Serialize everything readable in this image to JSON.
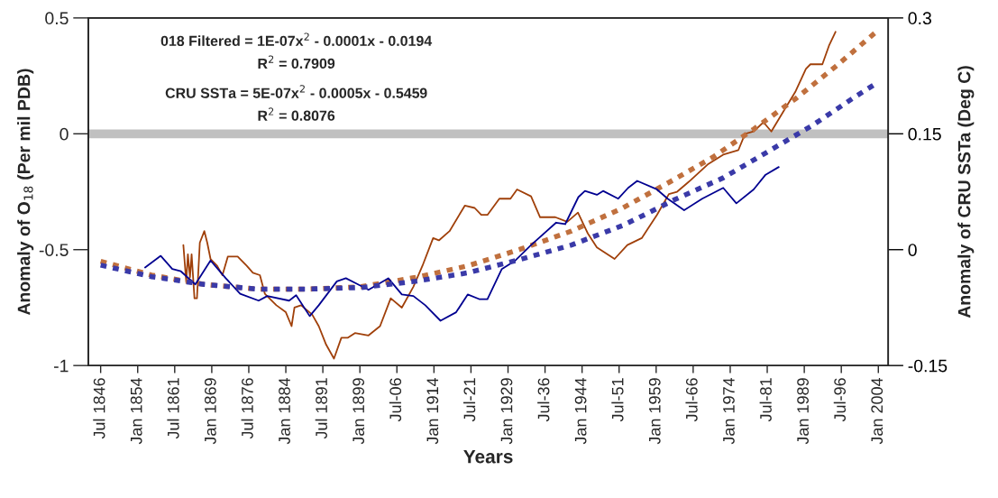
{
  "chart_data": {
    "type": "line",
    "xlabel": "Years",
    "ylabel": "Anomaly of O$_{18}$ (Per mil PDB)",
    "y2label": "Anomaly of CRU SSTa (Deg C)",
    "annotations": [
      "018 Filtered = 1E-07x$^{2}$ - 0.0001x - 0.0194",
      "R$^{2}$ = 0.7909",
      "CRU SSTa = 5E-07x$^{2}$ - 0.0005x - 0.5459",
      "R$^{2}$ = 0.8076"
    ],
    "xlim": [
      "1844-01",
      "2006-01"
    ],
    "xticks": [
      {
        "value": "1846-07",
        "label": "Jul 1846"
      },
      {
        "value": "1854-01",
        "label": "Jan 1854"
      },
      {
        "value": "1861-07",
        "label": "Jul 1861"
      },
      {
        "value": "1869-01",
        "label": "Jan 1869"
      },
      {
        "value": "1876-07",
        "label": "Jul 1876"
      },
      {
        "value": "1884-01",
        "label": "Jan 1884"
      },
      {
        "value": "1891-07",
        "label": "Jul 1891"
      },
      {
        "value": "1899-01",
        "label": "Jan 1899"
      },
      {
        "value": "1906-07",
        "label": "Jul-06"
      },
      {
        "value": "1914-01",
        "label": "Jan 1914"
      },
      {
        "value": "1921-07",
        "label": "Jul-21"
      },
      {
        "value": "1929-01",
        "label": "Jan 1929"
      },
      {
        "value": "1936-07",
        "label": "Jul-36"
      },
      {
        "value": "1944-01",
        "label": "Jan 1944"
      },
      {
        "value": "1951-07",
        "label": "Jul-51"
      },
      {
        "value": "1959-01",
        "label": "Jan 1959"
      },
      {
        "value": "1966-07",
        "label": "Jul-66"
      },
      {
        "value": "1974-01",
        "label": "Jan 1974"
      },
      {
        "value": "1981-07",
        "label": "Jul-81"
      },
      {
        "value": "1989-01",
        "label": "Jan 1989"
      },
      {
        "value": "1996-07",
        "label": "Jul-96"
      },
      {
        "value": "2004-01",
        "label": "Jan 2004"
      }
    ],
    "ylim": [
      -1,
      0.5
    ],
    "yticks": [
      -1,
      -0.5,
      0,
      0.5
    ],
    "y2lim": [
      -0.15,
      0.3
    ],
    "y2ticks": [
      -0.15,
      0,
      0.15,
      0.3
    ],
    "ref_lines": [
      {
        "axis": "y",
        "value": 0,
        "color": "#c0c0c0"
      }
    ],
    "grid": false,
    "legend": false,
    "marker": "none",
    "series": [
      {
        "axis": "y",
        "color": "#a0400a",
        "line_style": "solid",
        "x": [
          "1863-04",
          "1863-11",
          "1864-03",
          "1864-08",
          "1864-12",
          "1865-07",
          "1866-01",
          "1866-08",
          "1867-07",
          "1868-02",
          "1868-10",
          "1870-02",
          "1871-03",
          "1872-04",
          "1874-04",
          "1876-02",
          "1877-05",
          "1878-10",
          "1879-10",
          "1882-02",
          "1884-01",
          "1885-03",
          "1885-10",
          "1887-02",
          "1889-05",
          "1890-09",
          "1892-03",
          "1893-10",
          "1895-04",
          "1896-08",
          "1898-01",
          "1900-10",
          "1903-02",
          "1905-04",
          "1907-07",
          "1909-11",
          "1911-09",
          "1913-11",
          "1915-01",
          "1917-03",
          "1920-04",
          "1922-04",
          "1923-08",
          "1924-11",
          "1927-04",
          "1929-07",
          "1930-11",
          "1933-09",
          "1935-07",
          "1938-08",
          "1941-01",
          "1943-03",
          "1945-03",
          "1947-01",
          "1950-08",
          "1953-03",
          "1956-02",
          "1959-03",
          "1961-08",
          "1963-04",
          "1966-01",
          "1969-08",
          "1972-08",
          "1975-09",
          "1977-01",
          "1978-10",
          "1980-10",
          "1982-05",
          "1985-03",
          "1987-03",
          "1989-05",
          "1990-04",
          "1992-09",
          "1994-01",
          "1995-05"
        ],
        "values": [
          -0.48,
          -0.64,
          -0.52,
          -0.62,
          -0.52,
          -0.71,
          -0.71,
          -0.47,
          -0.42,
          -0.47,
          -0.54,
          -0.57,
          -0.61,
          -0.53,
          -0.53,
          -0.57,
          -0.6,
          -0.61,
          -0.69,
          -0.74,
          -0.77,
          -0.83,
          -0.75,
          -0.74,
          -0.78,
          -0.83,
          -0.91,
          -0.97,
          -0.88,
          -0.88,
          -0.86,
          -0.87,
          -0.83,
          -0.71,
          -0.75,
          -0.66,
          -0.57,
          -0.45,
          -0.46,
          -0.42,
          -0.31,
          -0.32,
          -0.35,
          -0.35,
          -0.28,
          -0.28,
          -0.24,
          -0.27,
          -0.36,
          -0.36,
          -0.38,
          -0.34,
          -0.43,
          -0.49,
          -0.54,
          -0.48,
          -0.45,
          -0.35,
          -0.26,
          -0.25,
          -0.2,
          -0.13,
          -0.09,
          -0.07,
          0.0,
          0.01,
          0.05,
          0.01,
          0.11,
          0.18,
          0.28,
          0.3,
          0.3,
          0.38,
          0.44
        ]
      },
      {
        "axis": "y2",
        "color": "#000090",
        "line_style": "solid",
        "x": [
          "1855-07",
          "1858-09",
          "1861-01",
          "1862-10",
          "1865-09",
          "1868-10",
          "1871-11",
          "1874-10",
          "1878-07",
          "1880-04",
          "1884-09",
          "1886-02",
          "1888-11",
          "1890-09",
          "1894-05",
          "1896-03",
          "1898-01",
          "1900-10",
          "1904-10",
          "1907-07",
          "1909-11",
          "1912-04",
          "1915-05",
          "1918-07",
          "1920-11",
          "1923-03",
          "1924-11",
          "1927-10",
          "1930-07",
          "1933-09",
          "1938-10",
          "1940-08",
          "1943-04",
          "1944-08",
          "1947-01",
          "1948-04",
          "1951-05",
          "1953-05",
          "1955-03",
          "1959-03",
          "1961-05",
          "1964-09",
          "1968-05",
          "1972-08",
          "1975-04",
          "1978-10",
          "1981-03",
          "1983-11"
        ],
        "values": [
          -0.023,
          -0.008,
          -0.025,
          -0.028,
          -0.045,
          -0.014,
          -0.037,
          -0.057,
          -0.066,
          -0.06,
          -0.066,
          -0.059,
          -0.086,
          -0.072,
          -0.041,
          -0.037,
          -0.043,
          -0.052,
          -0.037,
          -0.058,
          -0.06,
          -0.072,
          -0.092,
          -0.081,
          -0.058,
          -0.064,
          -0.064,
          -0.025,
          -0.014,
          0.006,
          0.035,
          0.033,
          0.068,
          0.076,
          0.071,
          0.076,
          0.066,
          0.08,
          0.089,
          0.078,
          0.066,
          0.051,
          0.066,
          0.08,
          0.06,
          0.078,
          0.097,
          0.107
        ]
      },
      {
        "axis": "y",
        "color": "#c0703e",
        "line_style": "dashed",
        "x": [
          "1846-07",
          "1856-11",
          "1867-07",
          "1878-04",
          "1888-11",
          "1899-04",
          "1910-04",
          "1920-11",
          "1931-04",
          "1941-11",
          "1952-04",
          "1961-08",
          "1970-08",
          "1978-10",
          "1987-03",
          "1995-05",
          "2003-08"
        ],
        "values": [
          -0.55,
          -0.61,
          -0.65,
          -0.67,
          -0.67,
          -0.66,
          -0.62,
          -0.57,
          -0.5,
          -0.42,
          -0.32,
          -0.21,
          -0.1,
          0.02,
          0.15,
          0.29,
          0.44
        ]
      },
      {
        "axis": "y2",
        "color": "#3a3aa8",
        "line_style": "dashed",
        "x": [
          "1846-07",
          "1856-11",
          "1867-07",
          "1878-04",
          "1888-11",
          "1899-04",
          "1910-04",
          "1920-11",
          "1931-04",
          "1941-11",
          "1952-07",
          "1962-11",
          "1972-08",
          "1981-09",
          "1990-09",
          "1998-11",
          "2003-07"
        ],
        "values": [
          -0.02,
          -0.035,
          -0.045,
          -0.051,
          -0.051,
          -0.049,
          -0.041,
          -0.03,
          -0.013,
          0.006,
          0.032,
          0.065,
          0.093,
          0.127,
          0.161,
          0.196,
          0.215
        ]
      }
    ]
  }
}
